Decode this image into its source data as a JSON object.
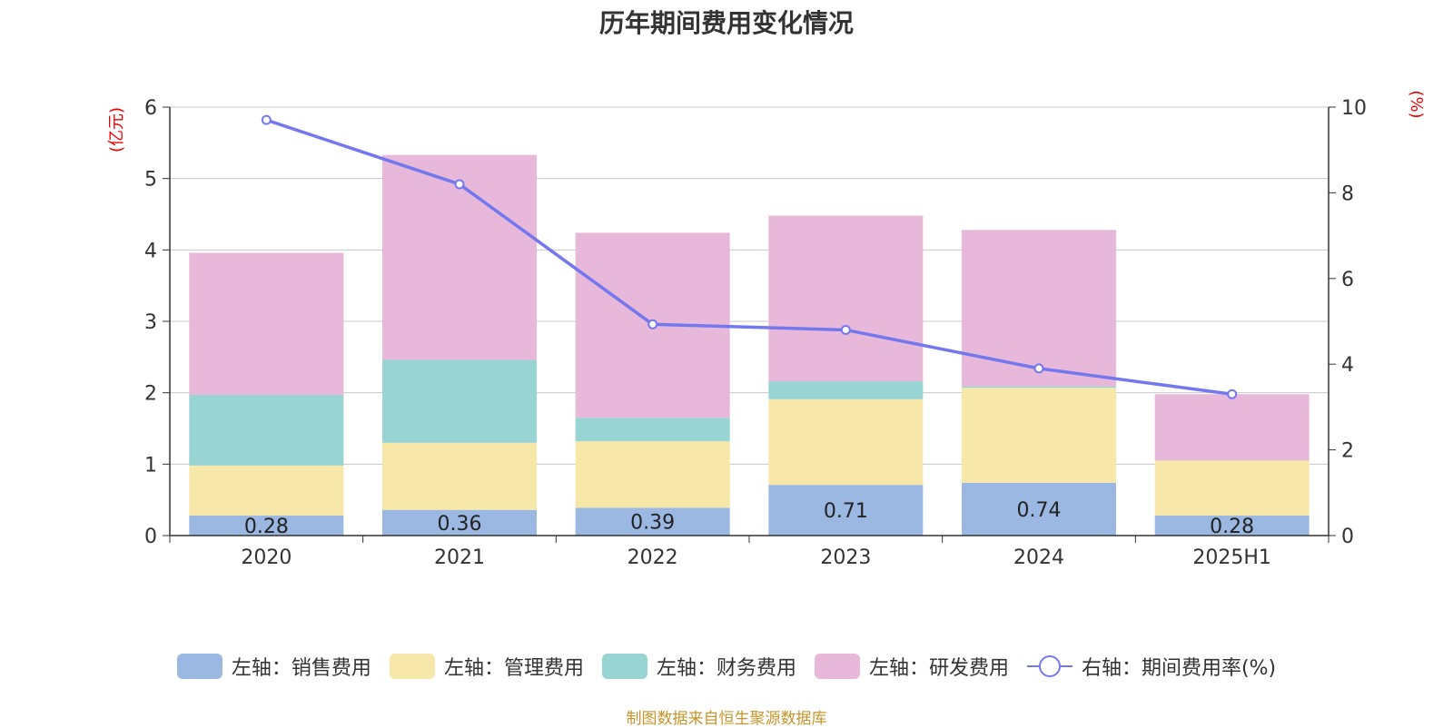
{
  "chart_data": {
    "type": "bar",
    "title": "历年期间费用变化情况",
    "categories": [
      "2020",
      "2021",
      "2022",
      "2023",
      "2024",
      "2025H1"
    ],
    "left_axis": {
      "unit_label": "(亿元)",
      "ylim": [
        0,
        6
      ],
      "ticks": [
        "0",
        "1",
        "2",
        "3",
        "4",
        "5",
        "6"
      ]
    },
    "right_axis": {
      "unit_label": "(%)",
      "ylim": [
        0,
        10
      ],
      "ticks": [
        "0",
        "2",
        "4",
        "6",
        "8",
        "10"
      ]
    },
    "series": [
      {
        "name": "左轴：销售费用",
        "kind": "bar",
        "axis": "left",
        "color": "#9bb8e2",
        "values": [
          0.28,
          0.36,
          0.39,
          0.71,
          0.74,
          0.28
        ],
        "labels": [
          "0.28",
          "0.36",
          "0.39",
          "0.71",
          "0.74",
          "0.28"
        ]
      },
      {
        "name": "左轴：管理费用",
        "kind": "bar",
        "axis": "left",
        "color": "#f7e7a8",
        "values": [
          0.7,
          0.94,
          0.93,
          1.2,
          1.33,
          0.77
        ]
      },
      {
        "name": "左轴：财务费用",
        "kind": "bar",
        "axis": "left",
        "color": "#98d4d3",
        "values": [
          0.99,
          1.16,
          0.33,
          0.25,
          0.02,
          0.0
        ]
      },
      {
        "name": "左轴：研发费用",
        "kind": "bar",
        "axis": "left",
        "color": "#e7b8d9",
        "values": [
          1.99,
          2.87,
          2.59,
          2.32,
          2.19,
          0.93
        ]
      },
      {
        "name": "右轴：期间费用率(%)",
        "kind": "line",
        "axis": "right",
        "color": "#7478ee",
        "values": [
          9.7,
          8.2,
          4.93,
          4.8,
          3.9,
          3.3
        ]
      }
    ],
    "grid": true,
    "legend_position": "bottom"
  },
  "source_note": "制图数据来自恒生聚源数据库"
}
